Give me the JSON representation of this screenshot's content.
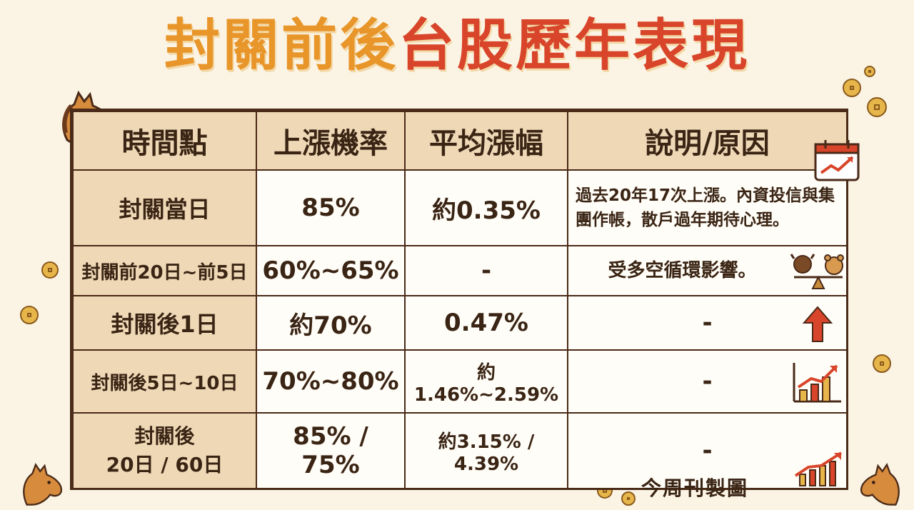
{
  "title": {
    "part1": "封關前後",
    "part2": "台股歷年表現"
  },
  "table": {
    "headers": [
      "時間點",
      "上漲機率",
      "平均漲幅",
      "說明/原因"
    ],
    "rows": [
      {
        "period": "封關當日",
        "rise_prob": "85%",
        "avg_gain": "約0.35%",
        "note": "過去20年17次上漲。內資投信與集團作帳，散戶過年期待心理。"
      },
      {
        "period": "封關前20日~前5日",
        "rise_prob": "60%~65%",
        "avg_gain": "-",
        "note": "受多空循環影響。"
      },
      {
        "period": "封關後1日",
        "rise_prob": "約70%",
        "avg_gain": "0.47%",
        "note": "-"
      },
      {
        "period": "封關後5日~10日",
        "rise_prob": "70%~80%",
        "avg_gain": "約1.46%~2.59%",
        "note": "-"
      },
      {
        "period_line1": "封關後",
        "period_line2": "20日 / 60日",
        "rise_prob": "85% / 75%",
        "avg_gain": "約3.15% / 4.39%",
        "note": "-"
      }
    ]
  },
  "footer": "今周刊製圖",
  "icons": {
    "horse": "horse-icon",
    "calendar": "calendar-chart-icon",
    "bull_bear": "bull-bear-scale-icon",
    "arrow_up": "arrow-up-icon",
    "bar_chart": "bar-chart-up-icon",
    "line_chart": "line-chart-up-icon",
    "coin": "coin-icon"
  },
  "colors": {
    "title_orange": "#e8952a",
    "title_red": "#d8452a",
    "header_bg": "#efd8b6",
    "border": "#4a2a18"
  }
}
